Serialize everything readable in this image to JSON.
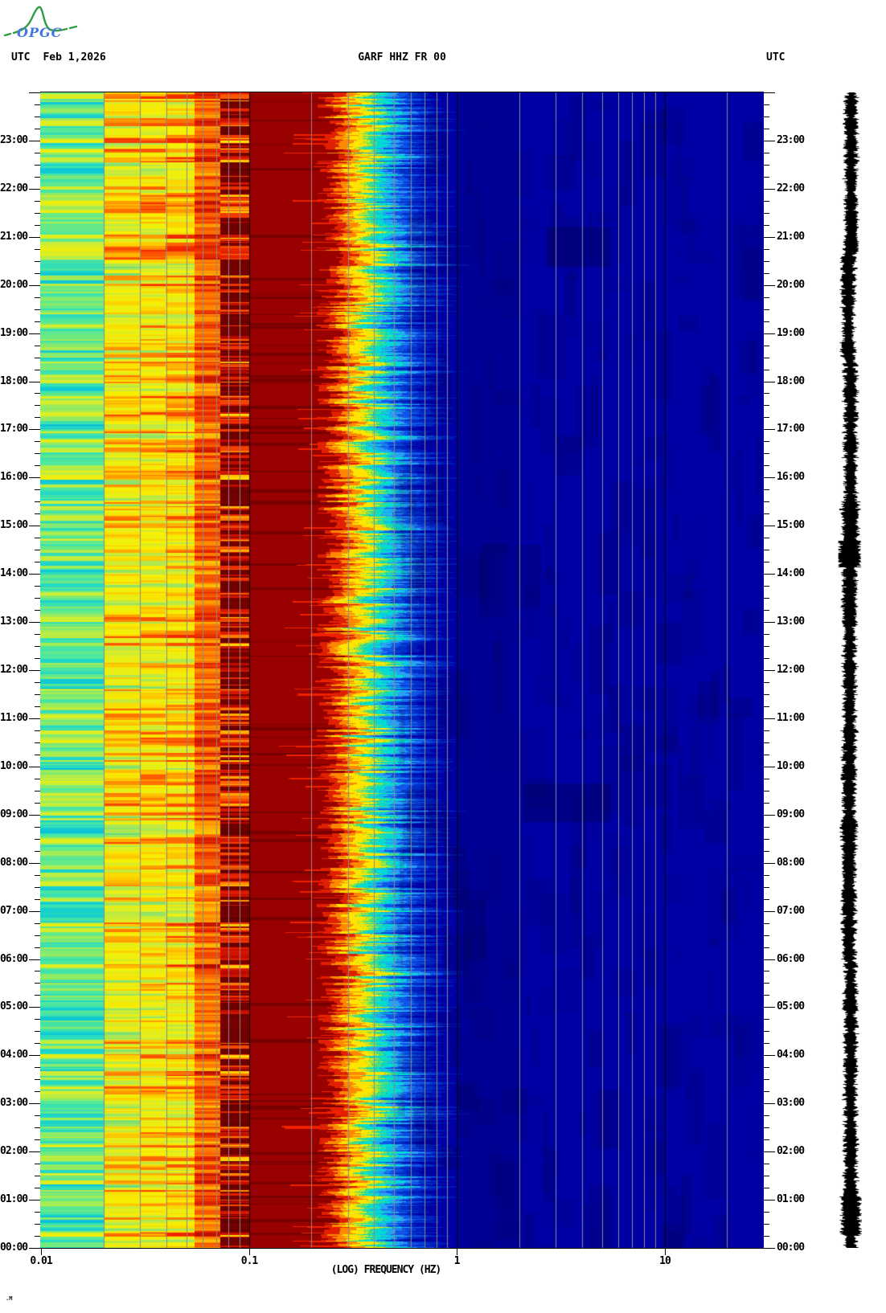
{
  "header": {
    "logo_text": "OPGC",
    "utc_left": "UTC",
    "date": "Feb 1,2026",
    "title": "GARF HHZ FR 00",
    "utc_right": "UTC"
  },
  "footer": {
    "corner_mark": ".M"
  },
  "chart_data": {
    "type": "heatmap",
    "subtype": "24-hour seismic spectrogram with side seismogram trace",
    "title": "GARF HHZ FR 00",
    "station": "GARF",
    "channel": "HHZ",
    "network": "FR",
    "location": "00",
    "date": "Feb 1,2026",
    "timezone": "UTC",
    "x_axis": {
      "label": "(LOG) FREQUENCY (HZ)",
      "scale": "log",
      "min_hz": 0.01,
      "max_hz": 30,
      "ticks": [
        {
          "label": "0.01",
          "hz": 0.01
        },
        {
          "label": "0.1",
          "hz": 0.1
        },
        {
          "label": "1",
          "hz": 1
        },
        {
          "label": "10",
          "hz": 10
        }
      ],
      "log_minor_gridlines": true
    },
    "y_axis": {
      "direction": "bottom-to-top",
      "start": "00:00",
      "end": "24:00",
      "minor_tick_minutes": 15,
      "hour_labels": [
        "00:00",
        "01:00",
        "02:00",
        "03:00",
        "04:00",
        "05:00",
        "06:00",
        "07:00",
        "08:00",
        "09:00",
        "10:00",
        "11:00",
        "12:00",
        "13:00",
        "14:00",
        "15:00",
        "16:00",
        "17:00",
        "18:00",
        "19:00",
        "20:00",
        "21:00",
        "22:00",
        "23:00"
      ]
    },
    "gridline_color": "#8a8a8a",
    "major_gridline_color": "#000000",
    "bands": [
      {
        "hz": [
          0.01,
          0.02
        ],
        "character": "banded cyan/green/yellow, time-varying stripes",
        "colors": [
          "#00b8e0",
          "#20d8c8",
          "#50e89c",
          "#96ec60",
          "#d6ee2e",
          "#f6ee00"
        ]
      },
      {
        "hz": [
          0.02,
          0.055
        ],
        "character": "banded yellow-green with orange/red streaks",
        "colors": [
          "#50d890",
          "#a8e858",
          "#e2ee20",
          "#f8f000",
          "#ffc000",
          "#ff7000",
          "#f02000"
        ]
      },
      {
        "hz": [
          0.055,
          0.073
        ],
        "character": "hot yellow/orange/red column",
        "colors": [
          "#f0ea00",
          "#ffb800",
          "#ff7000",
          "#e82800",
          "#b00800"
        ]
      },
      {
        "hz": [
          0.073,
          0.1
        ],
        "character": "dark red with bright red/orange/yellow streaks",
        "colors": [
          "#7c0000",
          "#b80800",
          "#e82000",
          "#ff6000",
          "#ffc800",
          "#ffee00"
        ]
      },
      {
        "hz": [
          0.1,
          0.25
        ],
        "character": "saturated solid dark red microseism band",
        "colors": [
          "#990000"
        ]
      },
      {
        "hz": [
          0.25,
          0.75
        ],
        "character": "ragged red-orange-yellow-cyan-blue transition",
        "colors": [
          "#e02000",
          "#ff8800",
          "#ffe400",
          "#b4f028",
          "#40e088",
          "#00dcd4",
          "#28a0f4",
          "#1054e8",
          "#0030c8"
        ]
      },
      {
        "hz": [
          0.75,
          30
        ],
        "character": "quiet deep blue with faint darker smudges",
        "colors": [
          "#0000a4"
        ]
      }
    ],
    "side_trace": {
      "content": "24-hour seismogram amplitude strip",
      "color": "#000000"
    }
  }
}
